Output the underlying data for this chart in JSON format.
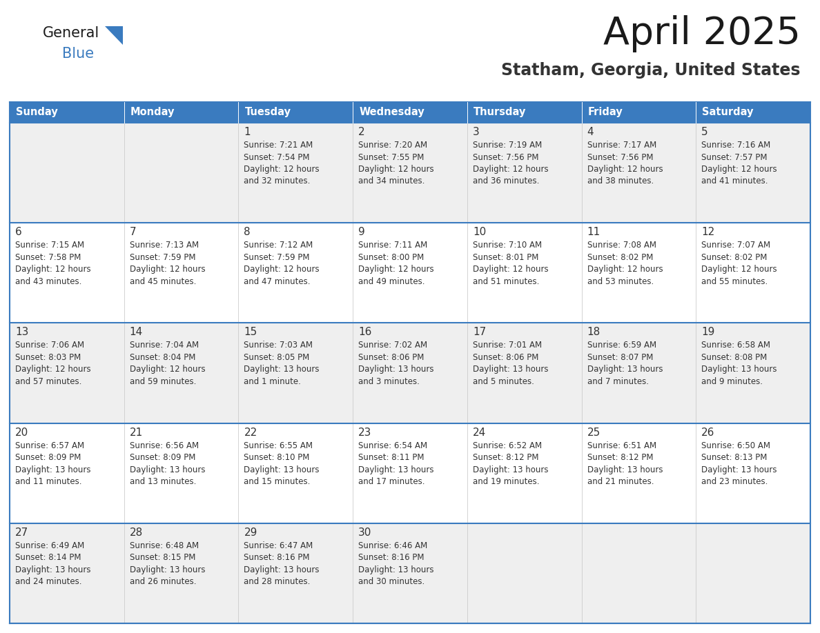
{
  "title": "April 2025",
  "subtitle": "Statham, Georgia, United States",
  "header_color": "#3a7bbf",
  "header_text_color": "#ffffff",
  "cell_bg_white": "#ffffff",
  "cell_bg_gray": "#efefef",
  "border_color": "#3a7bbf",
  "text_color": "#333333",
  "days_of_week": [
    "Sunday",
    "Monday",
    "Tuesday",
    "Wednesday",
    "Thursday",
    "Friday",
    "Saturday"
  ],
  "calendar_data": [
    [
      {
        "day": "",
        "info": ""
      },
      {
        "day": "",
        "info": ""
      },
      {
        "day": "1",
        "info": "Sunrise: 7:21 AM\nSunset: 7:54 PM\nDaylight: 12 hours\nand 32 minutes."
      },
      {
        "day": "2",
        "info": "Sunrise: 7:20 AM\nSunset: 7:55 PM\nDaylight: 12 hours\nand 34 minutes."
      },
      {
        "day": "3",
        "info": "Sunrise: 7:19 AM\nSunset: 7:56 PM\nDaylight: 12 hours\nand 36 minutes."
      },
      {
        "day": "4",
        "info": "Sunrise: 7:17 AM\nSunset: 7:56 PM\nDaylight: 12 hours\nand 38 minutes."
      },
      {
        "day": "5",
        "info": "Sunrise: 7:16 AM\nSunset: 7:57 PM\nDaylight: 12 hours\nand 41 minutes."
      }
    ],
    [
      {
        "day": "6",
        "info": "Sunrise: 7:15 AM\nSunset: 7:58 PM\nDaylight: 12 hours\nand 43 minutes."
      },
      {
        "day": "7",
        "info": "Sunrise: 7:13 AM\nSunset: 7:59 PM\nDaylight: 12 hours\nand 45 minutes."
      },
      {
        "day": "8",
        "info": "Sunrise: 7:12 AM\nSunset: 7:59 PM\nDaylight: 12 hours\nand 47 minutes."
      },
      {
        "day": "9",
        "info": "Sunrise: 7:11 AM\nSunset: 8:00 PM\nDaylight: 12 hours\nand 49 minutes."
      },
      {
        "day": "10",
        "info": "Sunrise: 7:10 AM\nSunset: 8:01 PM\nDaylight: 12 hours\nand 51 minutes."
      },
      {
        "day": "11",
        "info": "Sunrise: 7:08 AM\nSunset: 8:02 PM\nDaylight: 12 hours\nand 53 minutes."
      },
      {
        "day": "12",
        "info": "Sunrise: 7:07 AM\nSunset: 8:02 PM\nDaylight: 12 hours\nand 55 minutes."
      }
    ],
    [
      {
        "day": "13",
        "info": "Sunrise: 7:06 AM\nSunset: 8:03 PM\nDaylight: 12 hours\nand 57 minutes."
      },
      {
        "day": "14",
        "info": "Sunrise: 7:04 AM\nSunset: 8:04 PM\nDaylight: 12 hours\nand 59 minutes."
      },
      {
        "day": "15",
        "info": "Sunrise: 7:03 AM\nSunset: 8:05 PM\nDaylight: 13 hours\nand 1 minute."
      },
      {
        "day": "16",
        "info": "Sunrise: 7:02 AM\nSunset: 8:06 PM\nDaylight: 13 hours\nand 3 minutes."
      },
      {
        "day": "17",
        "info": "Sunrise: 7:01 AM\nSunset: 8:06 PM\nDaylight: 13 hours\nand 5 minutes."
      },
      {
        "day": "18",
        "info": "Sunrise: 6:59 AM\nSunset: 8:07 PM\nDaylight: 13 hours\nand 7 minutes."
      },
      {
        "day": "19",
        "info": "Sunrise: 6:58 AM\nSunset: 8:08 PM\nDaylight: 13 hours\nand 9 minutes."
      }
    ],
    [
      {
        "day": "20",
        "info": "Sunrise: 6:57 AM\nSunset: 8:09 PM\nDaylight: 13 hours\nand 11 minutes."
      },
      {
        "day": "21",
        "info": "Sunrise: 6:56 AM\nSunset: 8:09 PM\nDaylight: 13 hours\nand 13 minutes."
      },
      {
        "day": "22",
        "info": "Sunrise: 6:55 AM\nSunset: 8:10 PM\nDaylight: 13 hours\nand 15 minutes."
      },
      {
        "day": "23",
        "info": "Sunrise: 6:54 AM\nSunset: 8:11 PM\nDaylight: 13 hours\nand 17 minutes."
      },
      {
        "day": "24",
        "info": "Sunrise: 6:52 AM\nSunset: 8:12 PM\nDaylight: 13 hours\nand 19 minutes."
      },
      {
        "day": "25",
        "info": "Sunrise: 6:51 AM\nSunset: 8:12 PM\nDaylight: 13 hours\nand 21 minutes."
      },
      {
        "day": "26",
        "info": "Sunrise: 6:50 AM\nSunset: 8:13 PM\nDaylight: 13 hours\nand 23 minutes."
      }
    ],
    [
      {
        "day": "27",
        "info": "Sunrise: 6:49 AM\nSunset: 8:14 PM\nDaylight: 13 hours\nand 24 minutes."
      },
      {
        "day": "28",
        "info": "Sunrise: 6:48 AM\nSunset: 8:15 PM\nDaylight: 13 hours\nand 26 minutes."
      },
      {
        "day": "29",
        "info": "Sunrise: 6:47 AM\nSunset: 8:16 PM\nDaylight: 13 hours\nand 28 minutes."
      },
      {
        "day": "30",
        "info": "Sunrise: 6:46 AM\nSunset: 8:16 PM\nDaylight: 13 hours\nand 30 minutes."
      },
      {
        "day": "",
        "info": ""
      },
      {
        "day": "",
        "info": ""
      },
      {
        "day": "",
        "info": ""
      }
    ]
  ],
  "fig_width": 11.88,
  "fig_height": 9.18,
  "dpi": 100
}
